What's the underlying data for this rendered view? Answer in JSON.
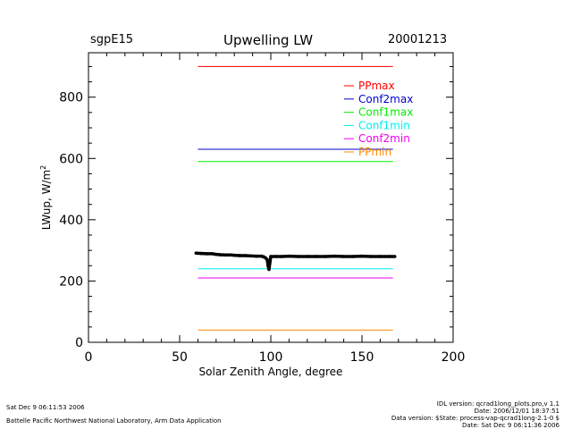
{
  "header": {
    "site": "sgpE15",
    "date": "20001213"
  },
  "footer": {
    "timestamp": "Sat Dec  9 06:11:53 2006",
    "org": "Battelle Pacific Northwest National Laboratory, Arm Data Application",
    "right_lines": [
      "IDL version: qcrad1long_plots.pro,v 1.1",
      "Date: 2006/12/01 18:37:51",
      "Data version: $State: process-vap-qcrad1long-2.1-0 $",
      "Date: Sat Dec  9 06:11:36 2006"
    ]
  },
  "chart_data": {
    "type": "scatter",
    "title": "Upwelling LW",
    "xlabel": "Solar Zenith Angle, degree",
    "ylabel": "LWup, W/m",
    "ylabel_sup": "2",
    "xlim": [
      0,
      200
    ],
    "ylim": [
      0,
      945
    ],
    "xticks": [
      0,
      50,
      100,
      150,
      200
    ],
    "yticks": [
      0,
      200,
      400,
      600,
      800
    ],
    "xminor": 10,
    "yminor": 50,
    "grid": false,
    "legend_position": "top-right",
    "reference_lines": [
      {
        "name": "PPmax",
        "value": 900,
        "x_range": [
          60,
          167
        ],
        "color": "#ff0000"
      },
      {
        "name": "Conf2max",
        "value": 630,
        "x_range": [
          60,
          167
        ],
        "color": "#0000cc"
      },
      {
        "name": "Conf1max",
        "value": 590,
        "x_range": [
          60,
          167
        ],
        "color": "#00ee00"
      },
      {
        "name": "Conf1min",
        "value": 240,
        "x_range": [
          60,
          167
        ],
        "color": "#00eeee"
      },
      {
        "name": "Conf2min",
        "value": 210,
        "x_range": [
          60,
          167
        ],
        "color": "#ee00ee"
      },
      {
        "name": "PPmin",
        "value": 40,
        "x_range": [
          60,
          167
        ],
        "color": "#ff8800"
      }
    ],
    "series": [
      {
        "name": "LWup",
        "color": "#000000",
        "x": [
          59,
          62,
          65,
          68,
          70,
          72,
          75,
          78,
          80,
          83,
          86,
          89,
          92,
          95,
          96,
          97,
          98,
          98.5,
          99,
          100,
          103,
          106,
          110,
          115,
          120,
          125,
          130,
          135,
          140,
          145,
          150,
          155,
          160,
          165,
          168
        ],
        "y": [
          291,
          290,
          289,
          289,
          287,
          286,
          285,
          285,
          284,
          283,
          283,
          282,
          281,
          281,
          279,
          276,
          270,
          250,
          238,
          280,
          280,
          280,
          281,
          280,
          280,
          280,
          280,
          281,
          280,
          280,
          281,
          280,
          280,
          280,
          280
        ]
      }
    ]
  }
}
